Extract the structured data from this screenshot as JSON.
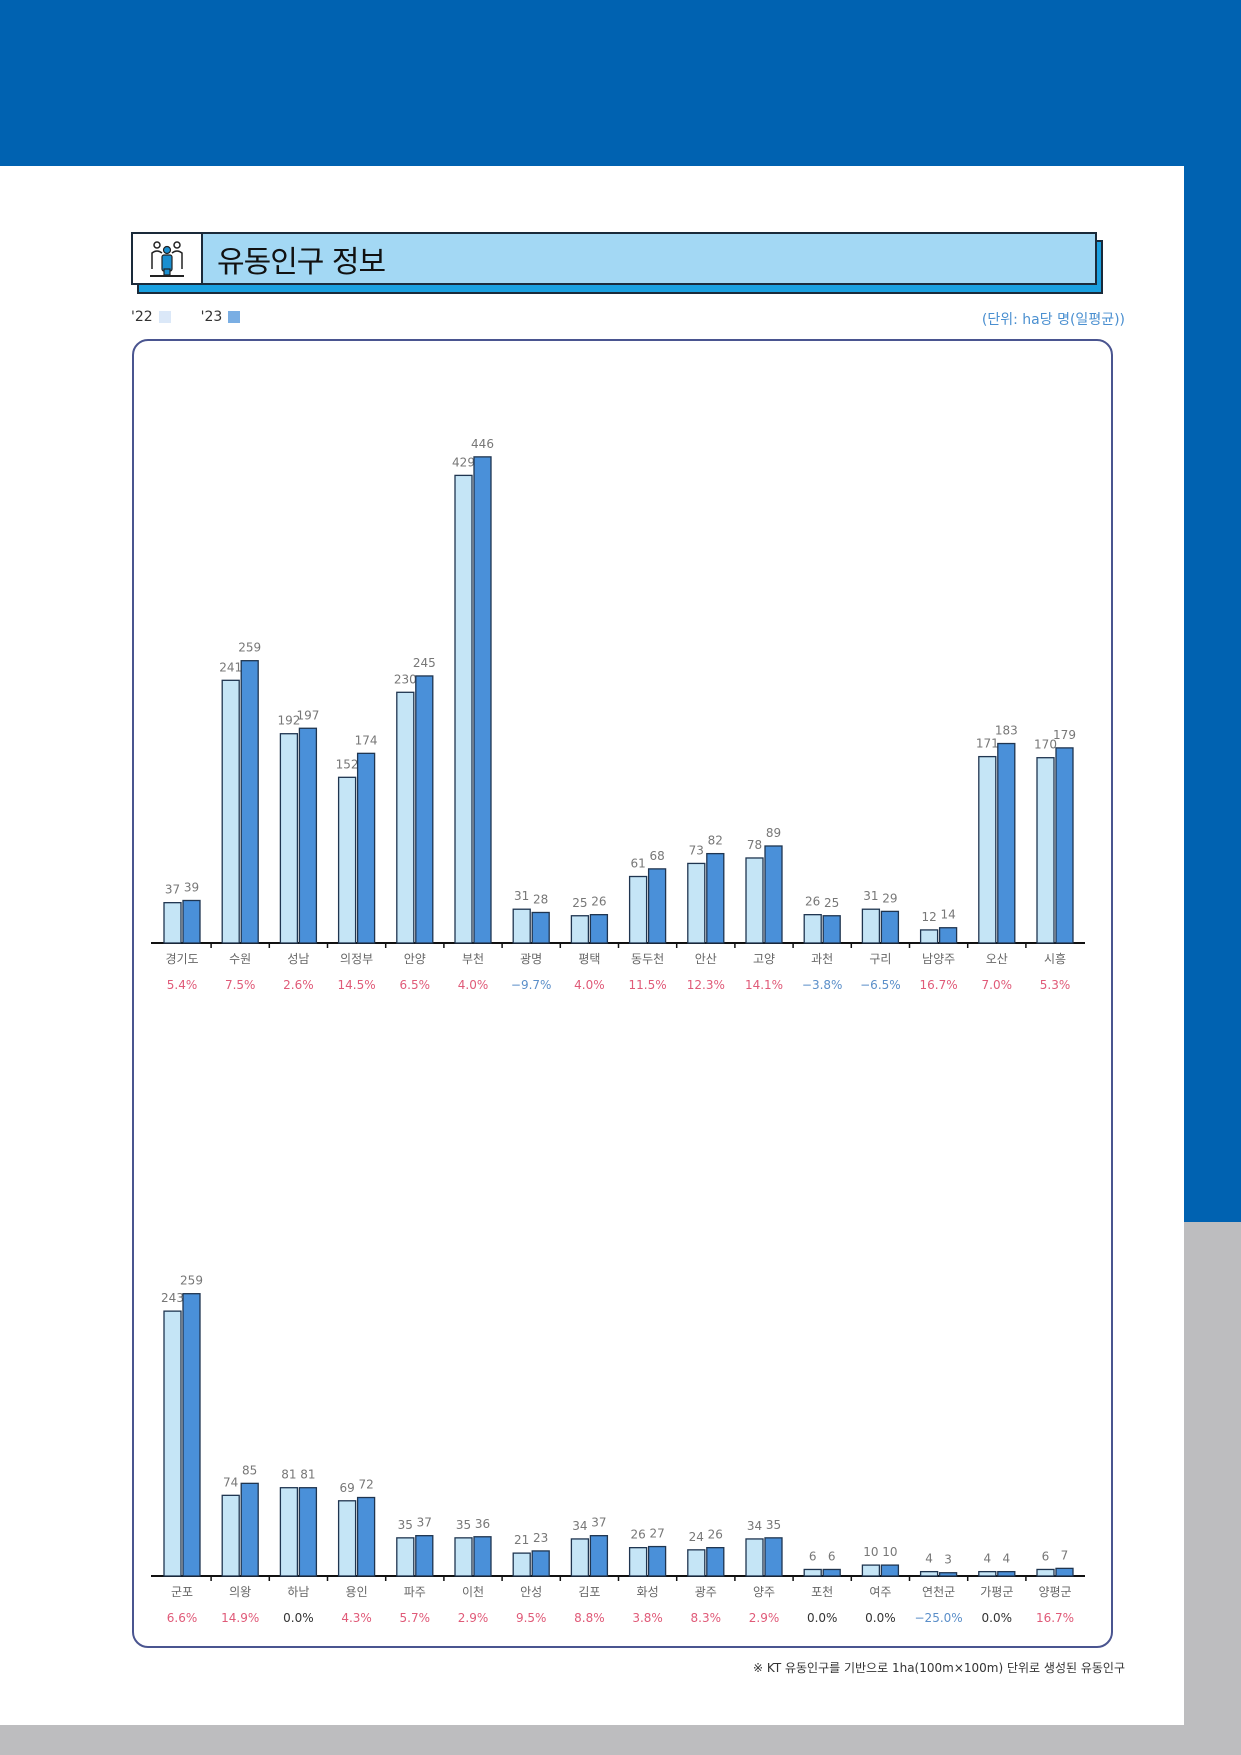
{
  "header": {
    "title": "유동인구 정보",
    "icon": "people-icon"
  },
  "legend": {
    "items": [
      {
        "label": "'22",
        "color": "#dbe8f8"
      },
      {
        "label": "'23",
        "color": "#7aaee3"
      }
    ]
  },
  "unit": "(단위: ha당 명(일평균))",
  "footnote": "※ KT 유동인구를 기반으로 1ha(100m×100m) 단위로 생성된 유동인구",
  "colors": {
    "bar_2022": "#c5e5f6",
    "bar_2023": "#4a90d9",
    "positive": "#e05a78",
    "negative": "#5b8fc9",
    "zero": "#333333"
  },
  "chart_data": [
    {
      "type": "bar",
      "categories": [
        "경기도",
        "수원",
        "성남",
        "의정부",
        "안양",
        "부천",
        "광명",
        "평택",
        "동두천",
        "안산",
        "고양",
        "과천",
        "구리",
        "남양주",
        "오산",
        "시흥"
      ],
      "series": [
        {
          "name": "'22",
          "values": [
            37,
            241,
            192,
            152,
            230,
            429,
            31,
            25,
            61,
            73,
            78,
            26,
            31,
            12,
            171,
            170
          ]
        },
        {
          "name": "'23",
          "values": [
            39,
            259,
            197,
            174,
            245,
            446,
            28,
            26,
            68,
            82,
            89,
            25,
            29,
            14,
            183,
            179
          ]
        }
      ],
      "change": [
        "5.4%",
        "7.5%",
        "2.6%",
        "14.5%",
        "6.5%",
        "4.0%",
        "-9.7%",
        "4.0%",
        "11.5%",
        "12.3%",
        "14.1%",
        "-3.8%",
        "-6.5%",
        "16.7%",
        "7.0%",
        "5.3%"
      ],
      "ylim": [
        0,
        460
      ]
    },
    {
      "type": "bar",
      "categories": [
        "군포",
        "의왕",
        "하남",
        "용인",
        "파주",
        "이천",
        "안성",
        "김포",
        "화성",
        "광주",
        "양주",
        "포천",
        "여주",
        "연천군",
        "가평군",
        "양평군"
      ],
      "series": [
        {
          "name": "'22",
          "values": [
            243,
            74,
            81,
            69,
            35,
            35,
            21,
            34,
            26,
            24,
            34,
            6,
            10,
            4,
            4,
            6
          ]
        },
        {
          "name": "'23",
          "values": [
            259,
            85,
            81,
            72,
            37,
            36,
            23,
            37,
            27,
            26,
            35,
            6,
            10,
            3,
            4,
            7
          ]
        }
      ],
      "change": [
        "6.6%",
        "14.9%",
        "0.0%",
        "4.3%",
        "5.7%",
        "2.9%",
        "9.5%",
        "8.8%",
        "3.8%",
        "8.3%",
        "2.9%",
        "0.0%",
        "0.0%",
        "-25.0%",
        "0.0%",
        "16.7%"
      ],
      "ylim": [
        0,
        460
      ]
    }
  ]
}
